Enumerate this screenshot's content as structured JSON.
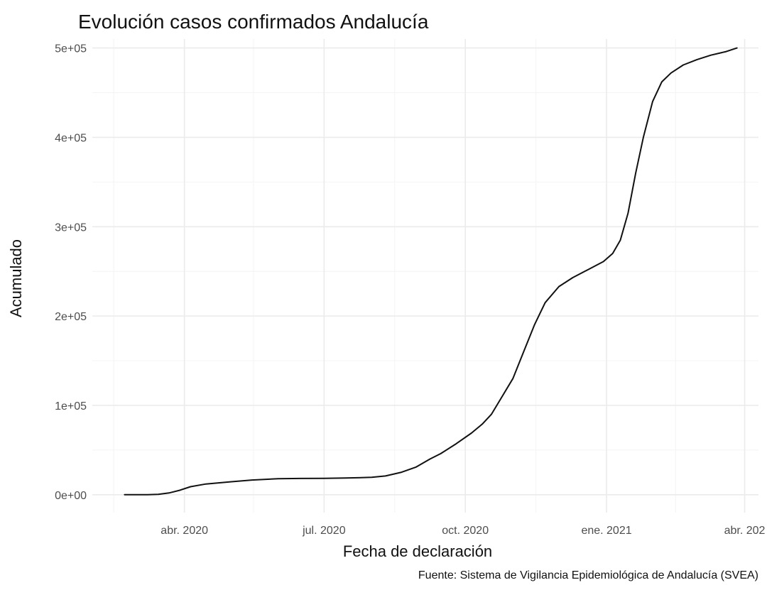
{
  "chart_data": {
    "type": "line",
    "title": "Evolución casos confirmados Andalucía",
    "xlabel": "Fecha de declaración",
    "ylabel": "Acumulado",
    "caption": "Fuente: Sistema de Vigilancia Epidemiológica de Andalucía (SVEA)",
    "grid": true,
    "legend": "none",
    "xlim": [
      "2020-02-01",
      "2021-04-10"
    ],
    "ylim": [
      -20000,
      510000
    ],
    "x_ticks": [
      {
        "date": "2020-04-01",
        "label": "abr. 2020"
      },
      {
        "date": "2020-07-01",
        "label": "jul. 2020"
      },
      {
        "date": "2020-10-01",
        "label": "oct. 2020"
      },
      {
        "date": "2021-01-01",
        "label": "ene. 2021"
      },
      {
        "date": "2021-04-01",
        "label": "abr. 202"
      }
    ],
    "x_minor_ticks": [
      "2020-02-15",
      "2020-05-16",
      "2020-08-16",
      "2020-11-16",
      "2021-02-15"
    ],
    "y_ticks": [
      {
        "value": 0,
        "label": "0e+00"
      },
      {
        "value": 100000,
        "label": "1e+05"
      },
      {
        "value": 200000,
        "label": "2e+05"
      },
      {
        "value": 300000,
        "label": "3e+05"
      },
      {
        "value": 400000,
        "label": "4e+05"
      },
      {
        "value": 500000,
        "label": "5e+05"
      }
    ],
    "y_minor_ticks": [
      50000,
      150000,
      250000,
      350000,
      450000
    ],
    "series": [
      {
        "x": [
          "2020-02-22",
          "2020-03-08",
          "2020-03-15",
          "2020-03-22",
          "2020-03-29",
          "2020-04-05",
          "2020-04-15",
          "2020-05-01",
          "2020-05-15",
          "2020-06-01",
          "2020-06-15",
          "2020-07-01",
          "2020-07-15",
          "2020-08-01",
          "2020-08-10",
          "2020-08-20",
          "2020-08-30",
          "2020-09-08",
          "2020-09-15",
          "2020-09-25",
          "2020-10-05",
          "2020-10-12",
          "2020-10-18",
          "2020-10-25",
          "2020-11-01",
          "2020-11-08",
          "2020-11-15",
          "2020-11-22",
          "2020-12-01",
          "2020-12-10",
          "2020-12-20",
          "2020-12-30",
          "2021-01-05",
          "2021-01-10",
          "2021-01-15",
          "2021-01-20",
          "2021-01-25",
          "2021-01-31",
          "2021-02-06",
          "2021-02-12",
          "2021-02-20",
          "2021-03-01",
          "2021-03-10",
          "2021-03-20",
          "2021-03-27"
        ],
        "y": [
          0,
          0,
          500,
          2000,
          5000,
          9000,
          12000,
          14500,
          16500,
          18000,
          18200,
          18300,
          18700,
          19500,
          21000,
          25000,
          31000,
          40000,
          46000,
          57000,
          69000,
          79000,
          90000,
          110000,
          130000,
          160000,
          190000,
          215000,
          233000,
          243000,
          252000,
          261000,
          270000,
          285000,
          315000,
          360000,
          400000,
          440000,
          462000,
          472000,
          481000,
          487000,
          492000,
          496000,
          500000
        ]
      }
    ]
  }
}
